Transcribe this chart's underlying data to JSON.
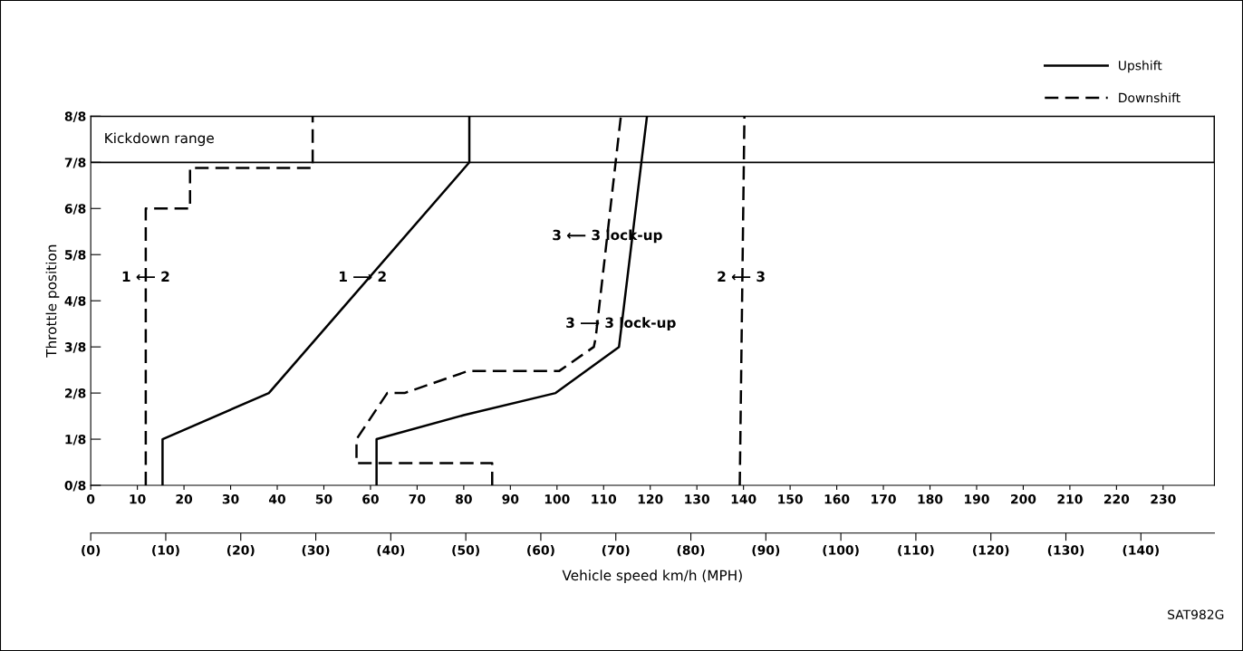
{
  "chart_data": {
    "type": "line",
    "xlabel": "Vehicle speed km/h (MPH)",
    "ylabel": "Throttle position",
    "xlim": [
      0,
      241
    ],
    "xticks": [
      0,
      10,
      20,
      30,
      40,
      50,
      60,
      70,
      80,
      90,
      100,
      110,
      120,
      130,
      140,
      150,
      160,
      170,
      180,
      190,
      200,
      210,
      220,
      230
    ],
    "x2lim": [
      0,
      149.8
    ],
    "x2ticks": [
      {
        "value": 0,
        "label": "(0)"
      },
      {
        "value": 10,
        "label": "(10)"
      },
      {
        "value": 20,
        "label": "(20)"
      },
      {
        "value": 30,
        "label": "(30)"
      },
      {
        "value": 40,
        "label": "(40)"
      },
      {
        "value": 50,
        "label": "(50)"
      },
      {
        "value": 60,
        "label": "(60)"
      },
      {
        "value": 70,
        "label": "(70)"
      },
      {
        "value": 80,
        "label": "(80)"
      },
      {
        "value": 90,
        "label": "(90)"
      },
      {
        "value": 100,
        "label": "(100)"
      },
      {
        "value": 110,
        "label": "(110)"
      },
      {
        "value": 120,
        "label": "(120)"
      },
      {
        "value": 130,
        "label": "(130)"
      },
      {
        "value": 140,
        "label": "(140)"
      }
    ],
    "ylim": [
      0,
      1
    ],
    "yticks": [
      {
        "value": 0,
        "label": "0/8"
      },
      {
        "value": 0.125,
        "label": "1/8"
      },
      {
        "value": 0.25,
        "label": "2/8"
      },
      {
        "value": 0.375,
        "label": "3/8"
      },
      {
        "value": 0.5,
        "label": "4/8"
      },
      {
        "value": 0.625,
        "label": "5/8"
      },
      {
        "value": 0.75,
        "label": "6/8"
      },
      {
        "value": 0.875,
        "label": "7/8"
      },
      {
        "value": 1,
        "label": "8/8"
      }
    ],
    "series": [
      {
        "name": "Upshift",
        "color": "#000000",
        "line_style": "solid",
        "x": [
          15.4,
          15.4,
          38.2,
          81.2,
          81.2
        ],
        "values": [
          0,
          0.125,
          0.25,
          0.875,
          1
        ]
      },
      {
        "color": "#000000",
        "line_style": "solid",
        "x": [
          61.3,
          61.3,
          80.0,
          99.7,
          113.3,
          119.3
        ],
        "values": [
          0,
          0.125,
          0.19,
          0.25,
          0.375,
          1
        ]
      },
      {
        "name": "Downshift",
        "color": "#000000",
        "line_style": "dashed",
        "x": [
          11.8,
          11.8,
          21.3,
          21.3,
          47.6,
          47.6
        ],
        "values": [
          0,
          0.75,
          0.75,
          0.86,
          0.86,
          1
        ]
      },
      {
        "color": "#000000",
        "line_style": "dashed",
        "x": [
          86.1,
          86.1,
          57.0,
          57.0,
          63.6,
          67.3,
          81.0,
          100.5,
          107.9,
          108.3,
          113.7
        ],
        "values": [
          0,
          0.06,
          0.06,
          0.125,
          0.25,
          0.25,
          0.31,
          0.31,
          0.375,
          0.4,
          1
        ]
      },
      {
        "color": "#000000",
        "line_style": "dashed",
        "x": [
          139.2,
          140.2
        ],
        "values": [
          0,
          1
        ]
      }
    ],
    "bands": [
      {
        "axis": "y",
        "from": 0.875,
        "to": 1,
        "label": "Kickdown range",
        "color": "#ffffff"
      }
    ],
    "annotations": [
      {
        "text": "1 ⟵ 2",
        "x": 11.8,
        "y": 0.5625
      },
      {
        "text": "1 ⟶ 2",
        "x": 58.3,
        "y": 0.5625
      },
      {
        "text": "3 ⟵ 3 lock-up",
        "x": 110.8,
        "y": 0.675
      },
      {
        "text": "3 ⟶ 3 lock-up",
        "x": 113.7,
        "y": 0.4375
      },
      {
        "text": "2 ⟵ 3",
        "x": 139.5,
        "y": 0.5625
      },
      "SAT982G"
    ],
    "legend": "top right",
    "grid": false,
    "marker": "none"
  }
}
